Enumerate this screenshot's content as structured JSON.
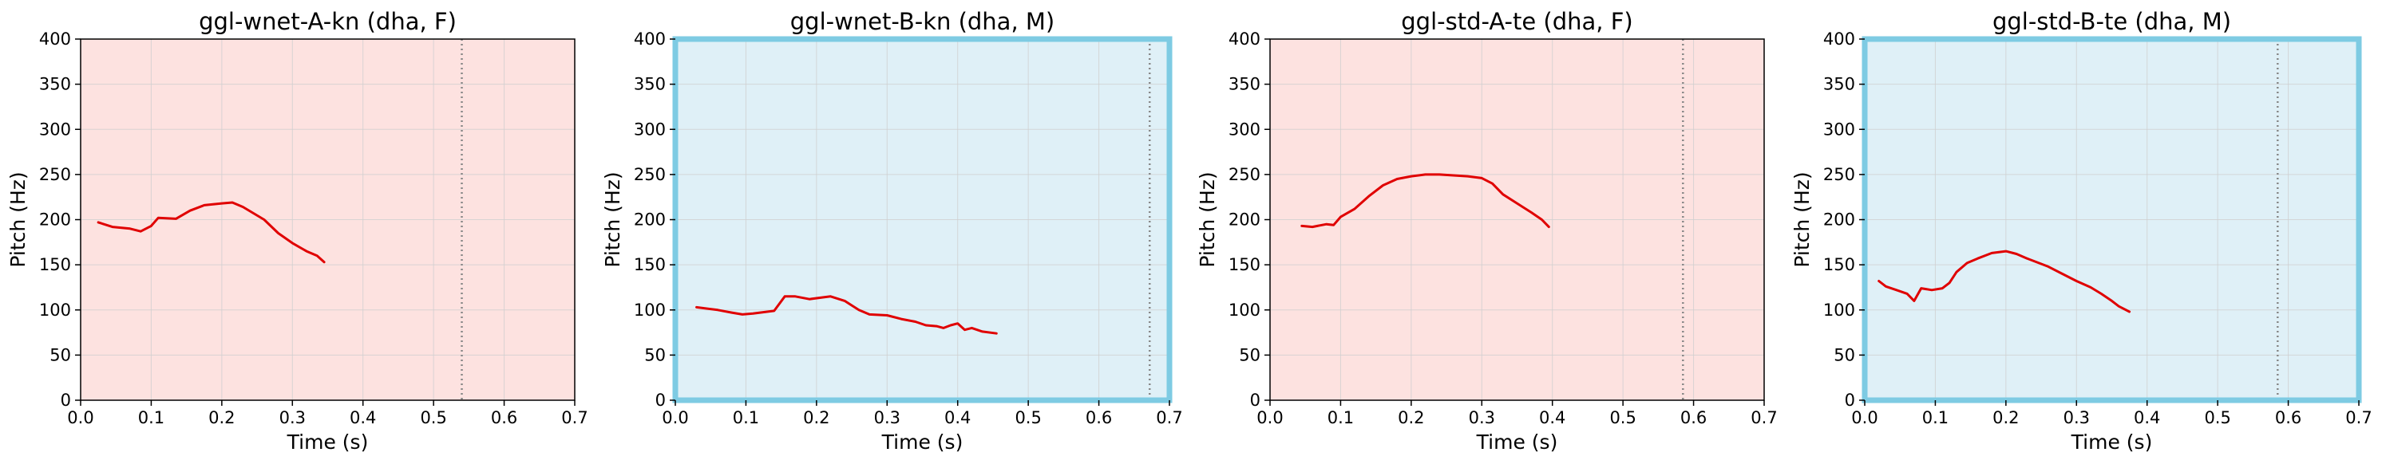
{
  "chart_data": [
    {
      "type": "line",
      "title": "ggl-wnet-A-kn (dha, F)",
      "xlabel": "Time (s)",
      "ylabel": "Pitch (Hz)",
      "xlim": [
        0,
        0.7
      ],
      "ylim": [
        0,
        400
      ],
      "xticks": [
        "0.0",
        "0.1",
        "0.2",
        "0.3",
        "0.4",
        "0.5",
        "0.6",
        "0.7"
      ],
      "yticks": [
        "0",
        "50",
        "100",
        "150",
        "200",
        "250",
        "300",
        "350",
        "400"
      ],
      "grid": true,
      "background_color": "#fde2e0",
      "highlight_border": false,
      "line_color": "#e00000",
      "vline_x": 0.54,
      "series": [
        {
          "x": [
            0.025,
            0.045,
            0.07,
            0.085,
            0.1,
            0.11,
            0.135,
            0.155,
            0.175,
            0.2,
            0.215,
            0.23,
            0.26,
            0.28,
            0.3,
            0.32,
            0.335,
            0.345
          ],
          "y": [
            197,
            192,
            190,
            187,
            193,
            202,
            201,
            210,
            216,
            218,
            219,
            214,
            200,
            185,
            174,
            165,
            160,
            153
          ]
        }
      ]
    },
    {
      "type": "line",
      "title": "ggl-wnet-B-kn (dha, M)",
      "xlabel": "Time (s)",
      "ylabel": "Pitch (Hz)",
      "xlim": [
        0,
        0.7
      ],
      "ylim": [
        0,
        400
      ],
      "xticks": [
        "0.0",
        "0.1",
        "0.2",
        "0.3",
        "0.4",
        "0.5",
        "0.6",
        "0.7"
      ],
      "yticks": [
        "0",
        "50",
        "100",
        "150",
        "200",
        "250",
        "300",
        "350",
        "400"
      ],
      "grid": true,
      "background_color": "#dff0f7",
      "highlight_border": true,
      "border_color": "#7ecbe3",
      "line_color": "#e00000",
      "vline_x": 0.672,
      "series": [
        {
          "x": [
            0.03,
            0.06,
            0.08,
            0.095,
            0.11,
            0.14,
            0.155,
            0.17,
            0.19,
            0.21,
            0.22,
            0.24,
            0.26,
            0.275,
            0.3,
            0.32,
            0.34,
            0.355,
            0.37,
            0.38,
            0.39,
            0.4,
            0.41,
            0.42,
            0.435,
            0.455
          ],
          "y": [
            103,
            100,
            97,
            95,
            96,
            99,
            115,
            115,
            112,
            114,
            115,
            110,
            100,
            95,
            94,
            90,
            87,
            83,
            82,
            80,
            83,
            85,
            78,
            80,
            76,
            74
          ]
        }
      ]
    },
    {
      "type": "line",
      "title": "ggl-std-A-te (dha, F)",
      "xlabel": "Time (s)",
      "ylabel": "Pitch (Hz)",
      "xlim": [
        0,
        0.7
      ],
      "ylim": [
        0,
        400
      ],
      "xticks": [
        "0.0",
        "0.1",
        "0.2",
        "0.3",
        "0.4",
        "0.5",
        "0.6",
        "0.7"
      ],
      "yticks": [
        "0",
        "50",
        "100",
        "150",
        "200",
        "250",
        "300",
        "350",
        "400"
      ],
      "grid": true,
      "background_color": "#fde2e0",
      "highlight_border": false,
      "line_color": "#e00000",
      "vline_x": 0.585,
      "series": [
        {
          "x": [
            0.045,
            0.06,
            0.08,
            0.09,
            0.1,
            0.12,
            0.14,
            0.16,
            0.18,
            0.2,
            0.22,
            0.24,
            0.26,
            0.28,
            0.3,
            0.315,
            0.33,
            0.35,
            0.37,
            0.385,
            0.395
          ],
          "y": [
            193,
            192,
            195,
            194,
            203,
            212,
            226,
            238,
            245,
            248,
            250,
            250,
            249,
            248,
            246,
            240,
            228,
            218,
            208,
            200,
            192
          ]
        }
      ]
    },
    {
      "type": "line",
      "title": "ggl-std-B-te (dha, M)",
      "xlabel": "Time (s)",
      "ylabel": "Pitch (Hz)",
      "xlim": [
        0,
        0.7
      ],
      "ylim": [
        0,
        400
      ],
      "xticks": [
        "0.0",
        "0.1",
        "0.2",
        "0.3",
        "0.4",
        "0.5",
        "0.6",
        "0.7"
      ],
      "yticks": [
        "0",
        "50",
        "100",
        "150",
        "200",
        "250",
        "300",
        "350",
        "400"
      ],
      "grid": true,
      "background_color": "#dff0f7",
      "highlight_border": true,
      "border_color": "#7ecbe3",
      "line_color": "#e00000",
      "vline_x": 0.585,
      "series": [
        {
          "x": [
            0.02,
            0.03,
            0.045,
            0.06,
            0.07,
            0.08,
            0.095,
            0.11,
            0.12,
            0.13,
            0.145,
            0.16,
            0.18,
            0.2,
            0.215,
            0.23,
            0.26,
            0.28,
            0.3,
            0.32,
            0.335,
            0.35,
            0.36,
            0.375
          ],
          "y": [
            132,
            126,
            122,
            118,
            110,
            124,
            122,
            124,
            130,
            142,
            152,
            157,
            163,
            165,
            162,
            157,
            148,
            140,
            132,
            125,
            118,
            110,
            104,
            98
          ]
        }
      ]
    }
  ]
}
